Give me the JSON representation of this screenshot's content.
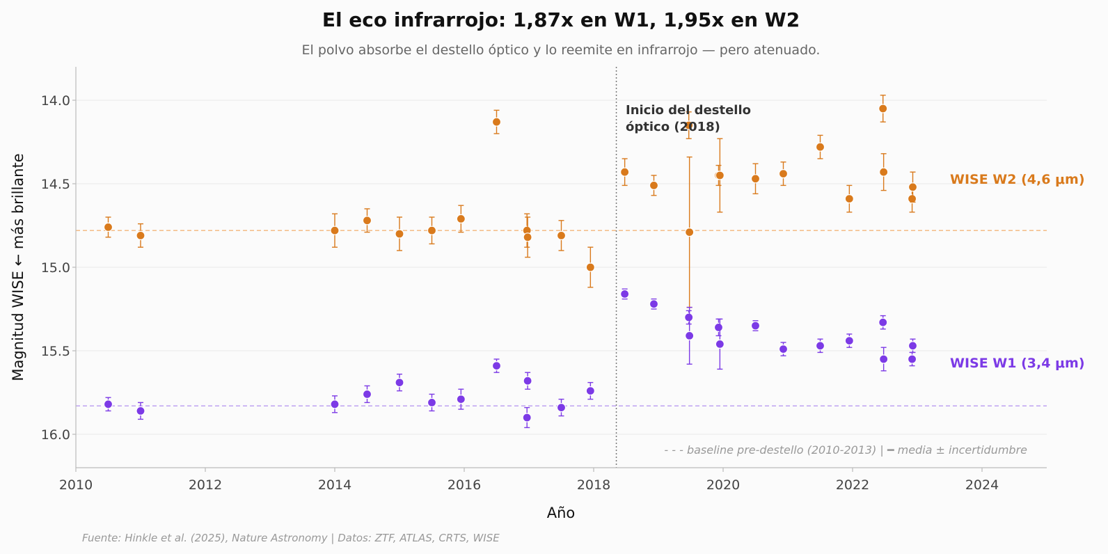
{
  "chart_data": {
    "type": "scatter",
    "title": "El eco infrarrojo: 1,87x en W1, 1,95x en W2",
    "subtitle": "El polvo absorbe el destello óptico y lo reemite en infrarrojo — pero atenuado.",
    "xlabel": "Año",
    "ylabel": "Magnitud WISE  ←  más brillante",
    "xlim": [
      2010,
      2025
    ],
    "ylim": [
      16.2,
      13.8
    ],
    "y_inverted": true,
    "xticks": [
      2010,
      2012,
      2014,
      2016,
      2018,
      2020,
      2022,
      2024
    ],
    "xtick_labels": [
      "2010",
      "2012",
      "2014",
      "2016",
      "2018",
      "2020",
      "2022",
      "2024"
    ],
    "yticks": [
      14.0,
      14.5,
      15.0,
      15.5,
      16.0
    ],
    "ytick_labels": [
      "14.0",
      "14.5",
      "15.0",
      "15.5",
      "16.0"
    ],
    "grid": "horizontal",
    "series": [
      {
        "name": "WISE W2 (4,6 μm)",
        "color": "#d97a1c",
        "baseline": 14.78,
        "points": [
          {
            "x": 2010.5,
            "y": 14.76,
            "err": 0.06
          },
          {
            "x": 2011.0,
            "y": 14.81,
            "err": 0.07
          },
          {
            "x": 2014.0,
            "y": 14.78,
            "err": 0.1
          },
          {
            "x": 2014.5,
            "y": 14.72,
            "err": 0.07
          },
          {
            "x": 2015.0,
            "y": 14.8,
            "err": 0.1
          },
          {
            "x": 2015.5,
            "y": 14.78,
            "err": 0.08
          },
          {
            "x": 2015.95,
            "y": 14.71,
            "err": 0.08
          },
          {
            "x": 2016.5,
            "y": 14.13,
            "err": 0.07
          },
          {
            "x": 2016.97,
            "y": 14.78,
            "err": 0.1
          },
          {
            "x": 2016.98,
            "y": 14.82,
            "err": 0.12
          },
          {
            "x": 2017.5,
            "y": 14.81,
            "err": 0.09
          },
          {
            "x": 2017.95,
            "y": 15.0,
            "err": 0.12
          },
          {
            "x": 2018.48,
            "y": 14.43,
            "err": 0.08
          },
          {
            "x": 2018.93,
            "y": 14.51,
            "err": 0.06
          },
          {
            "x": 2019.47,
            "y": 14.15,
            "err": 0.08
          },
          {
            "x": 2019.48,
            "y": 14.79,
            "err": 0.45
          },
          {
            "x": 2019.93,
            "y": 14.45,
            "err": 0.06
          },
          {
            "x": 2019.95,
            "y": 14.45,
            "err": 0.22
          },
          {
            "x": 2020.5,
            "y": 14.47,
            "err": 0.09
          },
          {
            "x": 2020.93,
            "y": 14.44,
            "err": 0.07
          },
          {
            "x": 2021.5,
            "y": 14.28,
            "err": 0.07
          },
          {
            "x": 2021.95,
            "y": 14.59,
            "err": 0.08
          },
          {
            "x": 2022.47,
            "y": 14.05,
            "err": 0.08
          },
          {
            "x": 2022.48,
            "y": 14.43,
            "err": 0.11
          },
          {
            "x": 2022.92,
            "y": 14.59,
            "err": 0.08
          },
          {
            "x": 2022.93,
            "y": 14.52,
            "err": 0.09
          }
        ]
      },
      {
        "name": "WISE W1 (3,4 μm)",
        "color": "#7c3ae6",
        "baseline": 15.83,
        "points": [
          {
            "x": 2010.5,
            "y": 15.82,
            "err": 0.04
          },
          {
            "x": 2011.0,
            "y": 15.86,
            "err": 0.05
          },
          {
            "x": 2014.0,
            "y": 15.82,
            "err": 0.05
          },
          {
            "x": 2014.5,
            "y": 15.76,
            "err": 0.05
          },
          {
            "x": 2015.0,
            "y": 15.69,
            "err": 0.05
          },
          {
            "x": 2015.5,
            "y": 15.81,
            "err": 0.05
          },
          {
            "x": 2015.95,
            "y": 15.79,
            "err": 0.06
          },
          {
            "x": 2016.5,
            "y": 15.59,
            "err": 0.04
          },
          {
            "x": 2016.97,
            "y": 15.9,
            "err": 0.06
          },
          {
            "x": 2016.98,
            "y": 15.68,
            "err": 0.05
          },
          {
            "x": 2017.5,
            "y": 15.84,
            "err": 0.05
          },
          {
            "x": 2017.95,
            "y": 15.74,
            "err": 0.05
          },
          {
            "x": 2018.48,
            "y": 15.16,
            "err": 0.03
          },
          {
            "x": 2018.93,
            "y": 15.22,
            "err": 0.03
          },
          {
            "x": 2019.47,
            "y": 15.3,
            "err": 0.04
          },
          {
            "x": 2019.48,
            "y": 15.41,
            "err": 0.17
          },
          {
            "x": 2019.93,
            "y": 15.36,
            "err": 0.05
          },
          {
            "x": 2019.95,
            "y": 15.46,
            "err": 0.15
          },
          {
            "x": 2020.5,
            "y": 15.35,
            "err": 0.03
          },
          {
            "x": 2020.93,
            "y": 15.49,
            "err": 0.04
          },
          {
            "x": 2021.5,
            "y": 15.47,
            "err": 0.04
          },
          {
            "x": 2021.95,
            "y": 15.44,
            "err": 0.04
          },
          {
            "x": 2022.47,
            "y": 15.33,
            "err": 0.04
          },
          {
            "x": 2022.48,
            "y": 15.55,
            "err": 0.07
          },
          {
            "x": 2022.92,
            "y": 15.55,
            "err": 0.04
          },
          {
            "x": 2022.93,
            "y": 15.47,
            "err": 0.04
          }
        ]
      }
    ],
    "vline": {
      "x": 2018.35,
      "style": "dotted",
      "color": "#777777"
    },
    "annotation": {
      "line1": "Inicio del destello",
      "line2": "óptico (2018)"
    },
    "note": "- - - baseline pre-destello (2010-2013)  |  ━ media ± incertidumbre",
    "source": "Fuente: Hinkle et al. (2025), Nature Astronomy | Datos: ZTF, ATLAS, CRTS, WISE"
  }
}
